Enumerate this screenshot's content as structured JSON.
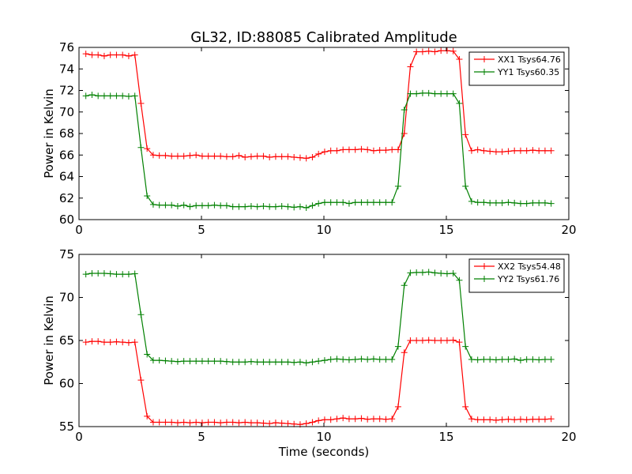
{
  "figure_title": "GL32, ID:88085 Calibrated Amplitude",
  "chart_data": [
    {
      "type": "line",
      "title": "GL32, ID:88085 Calibrated Amplitude",
      "xlabel": "",
      "ylabel": "Power in Kelvin",
      "xlim": [
        0,
        20
      ],
      "ylim": [
        60,
        76
      ],
      "xticks": [
        0,
        5,
        10,
        15,
        20
      ],
      "yticks": [
        60,
        62,
        64,
        66,
        68,
        70,
        72,
        74,
        76
      ],
      "grid": false,
      "legend_position": "top-right",
      "x": [
        0.28,
        0.53,
        0.78,
        1.03,
        1.28,
        1.53,
        1.78,
        2.03,
        2.28,
        2.53,
        2.78,
        3.03,
        3.28,
        3.53,
        3.78,
        4.03,
        4.28,
        4.53,
        4.78,
        5.03,
        5.28,
        5.53,
        5.78,
        6.03,
        6.28,
        6.53,
        6.78,
        7.03,
        7.28,
        7.53,
        7.78,
        8.03,
        8.28,
        8.53,
        8.78,
        9.03,
        9.28,
        9.53,
        9.78,
        10.03,
        10.28,
        10.53,
        10.78,
        11.03,
        11.28,
        11.53,
        11.78,
        12.03,
        12.28,
        12.53,
        12.78,
        13.03,
        13.28,
        13.53,
        13.78,
        14.03,
        14.28,
        14.53,
        14.78,
        15.03,
        15.28,
        15.53,
        15.78,
        16.03,
        16.28,
        16.53,
        16.78,
        17.03,
        17.28,
        17.53,
        17.78,
        18.03,
        18.28,
        18.53,
        18.78,
        19.03,
        19.28
      ],
      "series": [
        {
          "name": "XX1 Tsys64.76",
          "color": "#ff0000",
          "values": [
            75.4,
            75.3,
            75.3,
            75.2,
            75.3,
            75.3,
            75.3,
            75.2,
            75.3,
            70.8,
            66.6,
            66.0,
            65.95,
            65.95,
            65.9,
            65.9,
            65.9,
            65.95,
            66.0,
            65.9,
            65.9,
            65.9,
            65.9,
            65.85,
            65.85,
            65.95,
            65.8,
            65.85,
            65.9,
            65.9,
            65.8,
            65.85,
            65.85,
            65.85,
            65.8,
            65.75,
            65.7,
            65.8,
            66.1,
            66.3,
            66.4,
            66.4,
            66.5,
            66.5,
            66.5,
            66.55,
            66.5,
            66.4,
            66.45,
            66.45,
            66.5,
            66.5,
            68.0,
            74.2,
            75.6,
            75.6,
            75.65,
            75.6,
            75.7,
            75.7,
            75.65,
            74.9,
            67.9,
            66.4,
            66.5,
            66.4,
            66.35,
            66.3,
            66.3,
            66.35,
            66.4,
            66.4,
            66.4,
            66.45,
            66.4,
            66.4,
            66.4
          ]
        },
        {
          "name": "YY1 Tsys60.35",
          "color": "#008000",
          "values": [
            71.5,
            71.6,
            71.5,
            71.5,
            71.5,
            71.5,
            71.5,
            71.45,
            71.5,
            66.7,
            62.2,
            61.4,
            61.35,
            61.35,
            61.35,
            61.25,
            61.35,
            61.2,
            61.3,
            61.3,
            61.3,
            61.35,
            61.3,
            61.3,
            61.2,
            61.2,
            61.2,
            61.25,
            61.2,
            61.25,
            61.2,
            61.2,
            61.25,
            61.2,
            61.15,
            61.2,
            61.1,
            61.3,
            61.5,
            61.6,
            61.6,
            61.6,
            61.6,
            61.5,
            61.6,
            61.6,
            61.6,
            61.6,
            61.6,
            61.6,
            61.6,
            63.1,
            70.2,
            71.7,
            71.7,
            71.75,
            71.75,
            71.7,
            71.7,
            71.7,
            71.7,
            70.8,
            63.1,
            61.7,
            61.6,
            61.6,
            61.55,
            61.55,
            61.55,
            61.6,
            61.55,
            61.5,
            61.5,
            61.55,
            61.55,
            61.55,
            61.5
          ]
        }
      ]
    },
    {
      "type": "line",
      "title": "",
      "xlabel": "Time (seconds)",
      "ylabel": "Power in Kelvin",
      "xlim": [
        0,
        20
      ],
      "ylim": [
        55,
        75
      ],
      "xticks": [
        0,
        5,
        10,
        15,
        20
      ],
      "yticks": [
        55,
        60,
        65,
        70,
        75
      ],
      "grid": false,
      "legend_position": "top-right",
      "x": [
        0.28,
        0.53,
        0.78,
        1.03,
        1.28,
        1.53,
        1.78,
        2.03,
        2.28,
        2.53,
        2.78,
        3.03,
        3.28,
        3.53,
        3.78,
        4.03,
        4.28,
        4.53,
        4.78,
        5.03,
        5.28,
        5.53,
        5.78,
        6.03,
        6.28,
        6.53,
        6.78,
        7.03,
        7.28,
        7.53,
        7.78,
        8.03,
        8.28,
        8.53,
        8.78,
        9.03,
        9.28,
        9.53,
        9.78,
        10.03,
        10.28,
        10.53,
        10.78,
        11.03,
        11.28,
        11.53,
        11.78,
        12.03,
        12.28,
        12.53,
        12.78,
        13.03,
        13.28,
        13.53,
        13.78,
        14.03,
        14.28,
        14.53,
        14.78,
        15.03,
        15.28,
        15.53,
        15.78,
        16.03,
        16.28,
        16.53,
        16.78,
        17.03,
        17.28,
        17.53,
        17.78,
        18.03,
        18.28,
        18.53,
        18.78,
        19.03,
        19.28
      ],
      "series": [
        {
          "name": "XX2 Tsys54.48",
          "color": "#ff0000",
          "values": [
            64.8,
            64.9,
            64.9,
            64.8,
            64.8,
            64.85,
            64.8,
            64.75,
            64.8,
            60.4,
            56.2,
            55.5,
            55.5,
            55.5,
            55.5,
            55.45,
            55.5,
            55.45,
            55.5,
            55.45,
            55.5,
            55.5,
            55.45,
            55.5,
            55.5,
            55.45,
            55.5,
            55.45,
            55.45,
            55.4,
            55.35,
            55.45,
            55.4,
            55.35,
            55.3,
            55.25,
            55.35,
            55.5,
            55.7,
            55.8,
            55.8,
            55.9,
            56.0,
            55.9,
            55.9,
            55.95,
            55.85,
            55.9,
            55.9,
            55.85,
            55.9,
            57.3,
            63.6,
            65.0,
            65.0,
            65.0,
            65.05,
            65.0,
            65.0,
            65.0,
            65.05,
            64.8,
            57.3,
            55.9,
            55.8,
            55.8,
            55.8,
            55.75,
            55.8,
            55.85,
            55.8,
            55.85,
            55.8,
            55.85,
            55.85,
            55.85,
            55.9
          ]
        },
        {
          "name": "YY2 Tsys61.76",
          "color": "#008000",
          "values": [
            72.7,
            72.8,
            72.8,
            72.8,
            72.75,
            72.7,
            72.7,
            72.7,
            72.75,
            68.0,
            63.4,
            62.7,
            62.7,
            62.65,
            62.6,
            62.55,
            62.6,
            62.6,
            62.6,
            62.6,
            62.6,
            62.6,
            62.6,
            62.55,
            62.5,
            62.5,
            62.5,
            62.55,
            62.5,
            62.5,
            62.5,
            62.5,
            62.5,
            62.5,
            62.45,
            62.5,
            62.4,
            62.5,
            62.6,
            62.7,
            62.8,
            62.85,
            62.8,
            62.75,
            62.8,
            62.85,
            62.8,
            62.85,
            62.8,
            62.8,
            62.8,
            64.3,
            71.4,
            72.85,
            72.9,
            72.9,
            72.95,
            72.85,
            72.8,
            72.75,
            72.8,
            72.0,
            64.3,
            62.8,
            62.75,
            62.8,
            62.8,
            62.75,
            62.8,
            62.8,
            62.85,
            62.7,
            62.8,
            62.8,
            62.75,
            62.8,
            62.8
          ]
        }
      ]
    }
  ]
}
